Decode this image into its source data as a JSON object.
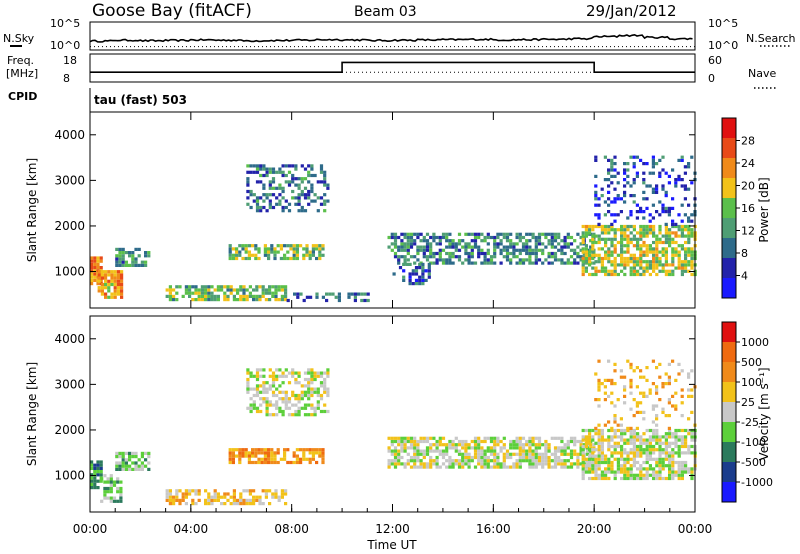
{
  "header": {
    "station": "Goose Bay (fitACF)",
    "beam": "Beam 03",
    "date": "29/Jan/2012"
  },
  "noise_panel": {
    "left_label": "N.Sky",
    "right_label": "N.Search",
    "left_ticks": [
      "10^5",
      "10^0"
    ],
    "right_ticks": [
      "10^5",
      "10^0"
    ]
  },
  "freq_panel": {
    "left_label_1": "Freq.",
    "left_label_2": "[MHz]",
    "right_label": "Nave",
    "left_ticks": [
      "18",
      "8"
    ],
    "right_ticks": [
      "60",
      "0"
    ]
  },
  "cpid": {
    "label": "CPID",
    "value": "tau (fast) 503"
  },
  "colors": {
    "power_scale": [
      "#1a1aff",
      "#2222aa",
      "#2e6b8a",
      "#4f9e74",
      "#5bbf4b",
      "#f2c21a",
      "#f08a1a",
      "#e84a18",
      "#e01010"
    ],
    "velocity_scale": [
      "#1a1aff",
      "#1a3c8c",
      "#2b7a5c",
      "#5ccf3a",
      "#c8c8c8",
      "#f2c21a",
      "#f08a1a",
      "#ef6a10",
      "#e01010"
    ],
    "ground_scatter": "#c8c8c8"
  },
  "chart_data": [
    {
      "type": "heatmap",
      "title": "",
      "xlabel": "Time UT",
      "ylabel": "Slant Range [km]",
      "xticks": [
        "00:00",
        "04:00",
        "08:00",
        "12:00",
        "16:00",
        "20:00",
        "00:00"
      ],
      "xlim_hours": [
        0,
        24
      ],
      "yticks": [
        1000,
        2000,
        3000,
        4000
      ],
      "ylim": [
        200,
        4500
      ],
      "colorbar": {
        "label": "Power [dB]",
        "ticks": [
          "4",
          "8",
          "12",
          "16",
          "20",
          "24",
          "28"
        ],
        "range": [
          0,
          30
        ]
      },
      "regions": [
        {
          "t0": 0.0,
          "t1": 0.5,
          "r0": 700,
          "r1": 1300,
          "level": 22,
          "density": 0.9
        },
        {
          "t0": 0.3,
          "t1": 1.2,
          "r0": 400,
          "r1": 1000,
          "level": 20,
          "density": 0.85
        },
        {
          "t0": 1.0,
          "t1": 2.3,
          "r0": 1100,
          "r1": 1500,
          "level": 11,
          "density": 0.6
        },
        {
          "t0": 3.0,
          "t1": 7.8,
          "r0": 350,
          "r1": 650,
          "level": 14,
          "density": 0.7
        },
        {
          "t0": 7.8,
          "t1": 11.0,
          "r0": 330,
          "r1": 480,
          "level": 8,
          "density": 0.35
        },
        {
          "t0": 5.5,
          "t1": 9.2,
          "r0": 1250,
          "r1": 1600,
          "level": 14,
          "density": 0.75
        },
        {
          "t0": 6.2,
          "t1": 9.5,
          "r0": 2300,
          "r1": 3300,
          "level": 9,
          "density": 0.45
        },
        {
          "t0": 11.8,
          "t1": 20.0,
          "r0": 1150,
          "r1": 1800,
          "level": 10,
          "density": 0.6
        },
        {
          "t0": 12.0,
          "t1": 13.5,
          "r0": 700,
          "r1": 1150,
          "level": 7,
          "density": 0.4
        },
        {
          "t0": 19.5,
          "t1": 24.0,
          "r0": 900,
          "r1": 2000,
          "level": 16,
          "density": 0.7
        },
        {
          "t0": 20.0,
          "t1": 24.0,
          "r0": 2000,
          "r1": 3500,
          "level": 6,
          "density": 0.25
        }
      ]
    },
    {
      "type": "heatmap",
      "title": "",
      "xlabel": "Time UT",
      "ylabel": "Slant Range [km]",
      "xticks": [
        "00:00",
        "04:00",
        "08:00",
        "12:00",
        "16:00",
        "20:00",
        "00:00"
      ],
      "xlim_hours": [
        0,
        24
      ],
      "yticks": [
        1000,
        2000,
        3000,
        4000
      ],
      "ylim": [
        200,
        4500
      ],
      "colorbar": {
        "label": "Velocity [m s⁻¹]",
        "ticks": [
          "1000",
          "500",
          "100",
          "25",
          "-25",
          "-100",
          "-500",
          "-1000"
        ],
        "range": [
          -1000,
          1000
        ]
      },
      "regions": [
        {
          "t0": 0.0,
          "t1": 0.5,
          "r0": 700,
          "r1": 1300,
          "level": 2,
          "density": 0.85
        },
        {
          "t0": 0.4,
          "t1": 1.2,
          "r0": 400,
          "r1": 1000,
          "level": 3,
          "density": 0.6
        },
        {
          "t0": 1.0,
          "t1": 2.3,
          "r0": 1100,
          "r1": 1500,
          "level": 3,
          "density": 0.6
        },
        {
          "t0": 3.0,
          "t1": 7.8,
          "r0": 350,
          "r1": 650,
          "level": 5,
          "density": 0.6
        },
        {
          "t0": 5.5,
          "t1": 9.2,
          "r0": 1250,
          "r1": 1600,
          "level": 6,
          "density": 0.75
        },
        {
          "t0": 6.2,
          "t1": 9.5,
          "r0": 2300,
          "r1": 3300,
          "level": 4,
          "density": 0.5
        },
        {
          "t0": 11.8,
          "t1": 20.0,
          "r0": 1150,
          "r1": 1800,
          "level": 4,
          "density": 0.7
        },
        {
          "t0": 19.5,
          "t1": 24.0,
          "r0": 900,
          "r1": 2000,
          "level": 4,
          "density": 0.75
        },
        {
          "t0": 20.0,
          "t1": 24.0,
          "r0": 2000,
          "r1": 3500,
          "level": 5,
          "density": 0.2
        }
      ]
    }
  ],
  "noise_series": {
    "sky": [
      0.32,
      0.35,
      0.33,
      0.34,
      0.36,
      0.35,
      0.33,
      0.34,
      0.35,
      0.37,
      0.36,
      0.34,
      0.35,
      0.36,
      0.37,
      0.38,
      0.36,
      0.37,
      0.38,
      0.4,
      0.48,
      0.52,
      0.45,
      0.4,
      0.38
    ],
    "search": [
      0.05,
      0.05,
      0.05,
      0.05,
      0.05,
      0.05,
      0.05,
      0.05,
      0.05,
      0.05,
      0.05,
      0.05,
      0.05,
      0.05,
      0.05,
      0.05,
      0.05,
      0.05,
      0.05,
      0.05,
      0.05,
      0.05,
      0.05,
      0.05,
      0.05
    ]
  },
  "freq_series": {
    "freq_mhz": [
      {
        "t0": 0,
        "t1": 10.0,
        "value": 11.5
      },
      {
        "t0": 10.0,
        "t1": 20.0,
        "value": 15.0
      },
      {
        "t0": 20.0,
        "t1": 24.0,
        "value": 11.5
      }
    ],
    "nave_level": 0.35
  }
}
